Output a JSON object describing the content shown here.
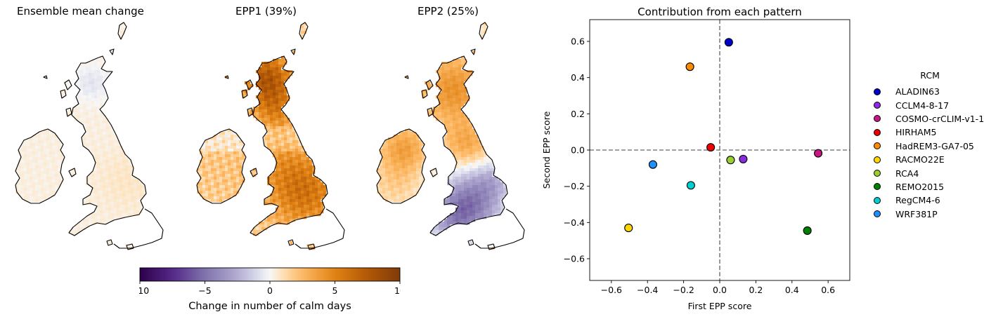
{
  "panels": [
    {
      "title": "Ensemble mean change"
    },
    {
      "title": "EPP1 (39%)"
    },
    {
      "title": "EPP2 (25%)"
    }
  ],
  "colorbar": {
    "label": "Change in number of calm days",
    "vmin": -10,
    "vmax": 10,
    "ticks": [
      -10,
      -5,
      0,
      5,
      10
    ],
    "tick_labels": [
      "−10",
      "−5",
      "0",
      "5",
      "10"
    ],
    "colormap": "PuOr_r",
    "colors": [
      "#2d004b",
      "#8073ac",
      "#f7f7f7",
      "#fdb863",
      "#7f3b08"
    ]
  },
  "chart_data": [
    {
      "type": "heatmap",
      "title": "Ensemble mean change",
      "description": "map of British Isles, near-zero values (light beige everywhere, faint lilac in north-west Scotland)",
      "value_range": [
        -1,
        2
      ]
    },
    {
      "type": "heatmap",
      "title": "EPP1 (39%)",
      "description": "map of British Isles, positive values (orange), strongest in western Scotland and south-east England",
      "value_range": [
        0,
        8
      ]
    },
    {
      "type": "heatmap",
      "title": "EPP2 (25%)",
      "description": "map of British Isles, positive in north (orange), negative in south England (purple)",
      "value_range": [
        -4,
        5
      ]
    },
    {
      "type": "scatter",
      "title": "Contribution from each pattern",
      "xlabel": "First EPP score",
      "ylabel": "Second EPP score",
      "xlim": [
        -0.72,
        0.72
      ],
      "ylim": [
        -0.72,
        0.72
      ],
      "xticks": [
        -0.6,
        -0.4,
        -0.2,
        0.0,
        0.2,
        0.4,
        0.6
      ],
      "yticks": [
        -0.6,
        -0.4,
        -0.2,
        0.0,
        0.2,
        0.4,
        0.6
      ],
      "xtick_labels": [
        "−0.6",
        "−0.4",
        "−0.2",
        "0.0",
        "0.2",
        "0.4",
        "0.6"
      ],
      "ytick_labels": [
        "−0.6",
        "−0.4",
        "−0.2",
        "0.0",
        "0.2",
        "0.4",
        "0.6"
      ],
      "reference_lines": {
        "x": 0,
        "y": 0,
        "style": "dashed",
        "color": "#808080"
      },
      "grid": false,
      "legend": {
        "title": "RCM",
        "placement": "outside-right"
      },
      "series": [
        {
          "name": "ALADIN63",
          "color": "#0000cd",
          "x": 0.05,
          "y": 0.595
        },
        {
          "name": "CCLM4-8-17",
          "color": "#8a2be2",
          "x": 0.13,
          "y": -0.05
        },
        {
          "name": "COSMO-crCLIM-v1-1",
          "color": "#c71585",
          "x": 0.545,
          "y": -0.018
        },
        {
          "name": "HIRHAM5",
          "color": "#ee0000",
          "x": -0.05,
          "y": 0.015
        },
        {
          "name": "HadREM3-GA7-05",
          "color": "#ff8c00",
          "x": -0.165,
          "y": 0.46
        },
        {
          "name": "RACMO22E",
          "color": "#ffd700",
          "x": -0.505,
          "y": -0.43
        },
        {
          "name": "RCA4",
          "color": "#9acd32",
          "x": 0.06,
          "y": -0.055
        },
        {
          "name": "REMO2015",
          "color": "#008000",
          "x": 0.485,
          "y": -0.445
        },
        {
          "name": "RegCM4-6",
          "color": "#00ced1",
          "x": -0.16,
          "y": -0.195
        },
        {
          "name": "WRF381P",
          "color": "#1e90ff",
          "x": -0.37,
          "y": -0.08
        }
      ]
    }
  ]
}
